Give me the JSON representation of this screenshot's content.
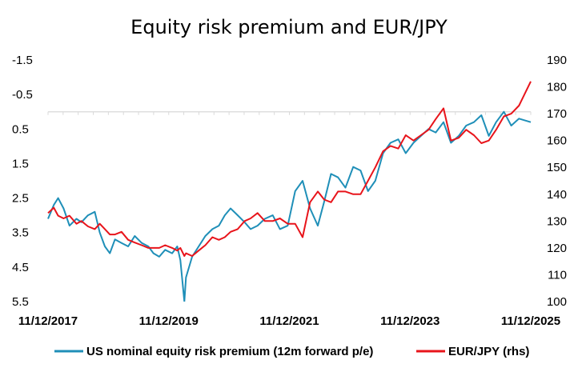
{
  "chart_data": {
    "type": "line",
    "title": "Equity risk premium and EUR/JPY",
    "xlabel": "",
    "ylabel": "",
    "x_ticks": [
      "11/12/2017",
      "11/12/2019",
      "11/12/2021",
      "11/12/2023",
      "11/12/2025"
    ],
    "x_range": [
      "2017-12-11",
      "2025-12-11"
    ],
    "y_left": {
      "inverted": true,
      "range": [
        -1.5,
        5.5
      ],
      "ticks": [
        "-1.5",
        "-0.5",
        "0.5",
        "1.5",
        "2.5",
        "3.5",
        "4.5",
        "5.5"
      ]
    },
    "y_right": {
      "range": [
        100,
        190
      ],
      "ticks": [
        "190",
        "180",
        "170",
        "160",
        "150",
        "140",
        "130",
        "120",
        "110",
        "100"
      ]
    },
    "grid": false,
    "legend_position": "bottom",
    "series": [
      {
        "name": "US nominal equity risk premium (12m forward p/e)",
        "axis": "left",
        "color": "#1f8fb8",
        "x": [
          "2017-12-11",
          "2018-01-15",
          "2018-02-10",
          "2018-03-15",
          "2018-04-20",
          "2018-06-01",
          "2018-07-01",
          "2018-08-10",
          "2018-09-20",
          "2018-10-20",
          "2018-11-20",
          "2018-12-20",
          "2019-01-20",
          "2019-03-01",
          "2019-04-10",
          "2019-05-20",
          "2019-07-01",
          "2019-08-10",
          "2019-09-10",
          "2019-10-15",
          "2019-11-20",
          "2020-01-01",
          "2020-02-01",
          "2020-02-20",
          "2020-03-15",
          "2020-03-25",
          "2020-05-01",
          "2020-06-10",
          "2020-07-20",
          "2020-09-01",
          "2020-10-10",
          "2020-11-15",
          "2020-12-20",
          "2021-02-01",
          "2021-03-15",
          "2021-04-20",
          "2021-06-01",
          "2021-07-15",
          "2021-09-01",
          "2021-10-15",
          "2021-12-01",
          "2022-01-15",
          "2022-03-01",
          "2022-04-15",
          "2022-06-01",
          "2022-07-10",
          "2022-08-20",
          "2022-10-01",
          "2022-11-15",
          "2023-01-01",
          "2023-02-15",
          "2023-04-01",
          "2023-05-15",
          "2023-07-01",
          "2023-08-15",
          "2023-10-01",
          "2023-11-15",
          "2024-01-01",
          "2024-02-15",
          "2024-04-01",
          "2024-05-15",
          "2024-07-01",
          "2024-08-15",
          "2024-10-01",
          "2024-11-15",
          "2025-01-01",
          "2025-02-15",
          "2025-04-01",
          "2025-05-15",
          "2025-07-01",
          "2025-08-15",
          "2025-10-01",
          "2025-12-11"
        ],
        "values": [
          3.1,
          2.7,
          2.5,
          2.8,
          3.3,
          3.1,
          3.2,
          3.0,
          2.9,
          3.5,
          3.9,
          4.1,
          3.7,
          3.8,
          3.9,
          3.6,
          3.8,
          3.9,
          4.1,
          4.2,
          4.0,
          4.1,
          3.9,
          4.3,
          5.5,
          4.8,
          4.2,
          3.9,
          3.6,
          3.4,
          3.3,
          3.0,
          2.8,
          3.0,
          3.2,
          3.4,
          3.3,
          3.1,
          3.0,
          3.4,
          3.3,
          2.3,
          2.0,
          2.8,
          3.3,
          2.6,
          1.8,
          1.9,
          2.2,
          1.6,
          1.7,
          2.3,
          2.0,
          1.2,
          0.9,
          0.8,
          1.2,
          0.9,
          0.7,
          0.5,
          0.6,
          0.3,
          0.9,
          0.7,
          0.4,
          0.3,
          0.1,
          0.7,
          0.3,
          0.0,
          0.4,
          0.2,
          0.3
        ]
      },
      {
        "name": "EUR/JPY (rhs)",
        "axis": "right",
        "color": "#e8141b",
        "x": [
          "2017-12-11",
          "2018-01-15",
          "2018-02-10",
          "2018-03-15",
          "2018-04-20",
          "2018-06-01",
          "2018-07-01",
          "2018-08-10",
          "2018-09-20",
          "2018-10-20",
          "2018-11-20",
          "2018-12-20",
          "2019-01-20",
          "2019-03-01",
          "2019-04-10",
          "2019-05-20",
          "2019-07-01",
          "2019-08-10",
          "2019-09-10",
          "2019-10-15",
          "2019-11-20",
          "2020-01-01",
          "2020-02-01",
          "2020-02-20",
          "2020-03-15",
          "2020-03-25",
          "2020-05-01",
          "2020-06-10",
          "2020-07-20",
          "2020-09-01",
          "2020-10-10",
          "2020-11-15",
          "2020-12-20",
          "2021-02-01",
          "2021-03-15",
          "2021-04-20",
          "2021-06-01",
          "2021-07-15",
          "2021-09-01",
          "2021-10-15",
          "2021-12-01",
          "2022-01-15",
          "2022-03-01",
          "2022-04-15",
          "2022-06-01",
          "2022-07-10",
          "2022-08-20",
          "2022-10-01",
          "2022-11-15",
          "2023-01-01",
          "2023-02-15",
          "2023-04-01",
          "2023-05-15",
          "2023-07-01",
          "2023-08-15",
          "2023-10-01",
          "2023-11-15",
          "2024-01-01",
          "2024-02-15",
          "2024-04-01",
          "2024-05-15",
          "2024-07-01",
          "2024-08-15",
          "2024-10-01",
          "2024-11-15",
          "2025-01-01",
          "2025-02-15",
          "2025-04-01",
          "2025-05-15",
          "2025-07-01",
          "2025-08-15",
          "2025-10-01",
          "2025-12-11"
        ],
        "values": [
          133,
          135,
          132,
          131,
          132,
          129,
          130,
          128,
          127,
          129,
          127,
          125,
          125,
          126,
          123,
          122,
          121,
          120,
          120,
          120,
          121,
          120,
          119,
          120,
          117,
          118,
          117,
          119,
          121,
          124,
          123,
          124,
          126,
          127,
          130,
          131,
          133,
          130,
          130,
          131,
          129,
          129,
          124,
          137,
          141,
          138,
          137,
          141,
          141,
          140,
          140,
          145,
          150,
          156,
          158,
          157,
          162,
          160,
          162,
          164,
          168,
          172,
          160,
          161,
          164,
          162,
          159,
          160,
          164,
          169,
          170,
          173,
          182
        ]
      }
    ]
  }
}
